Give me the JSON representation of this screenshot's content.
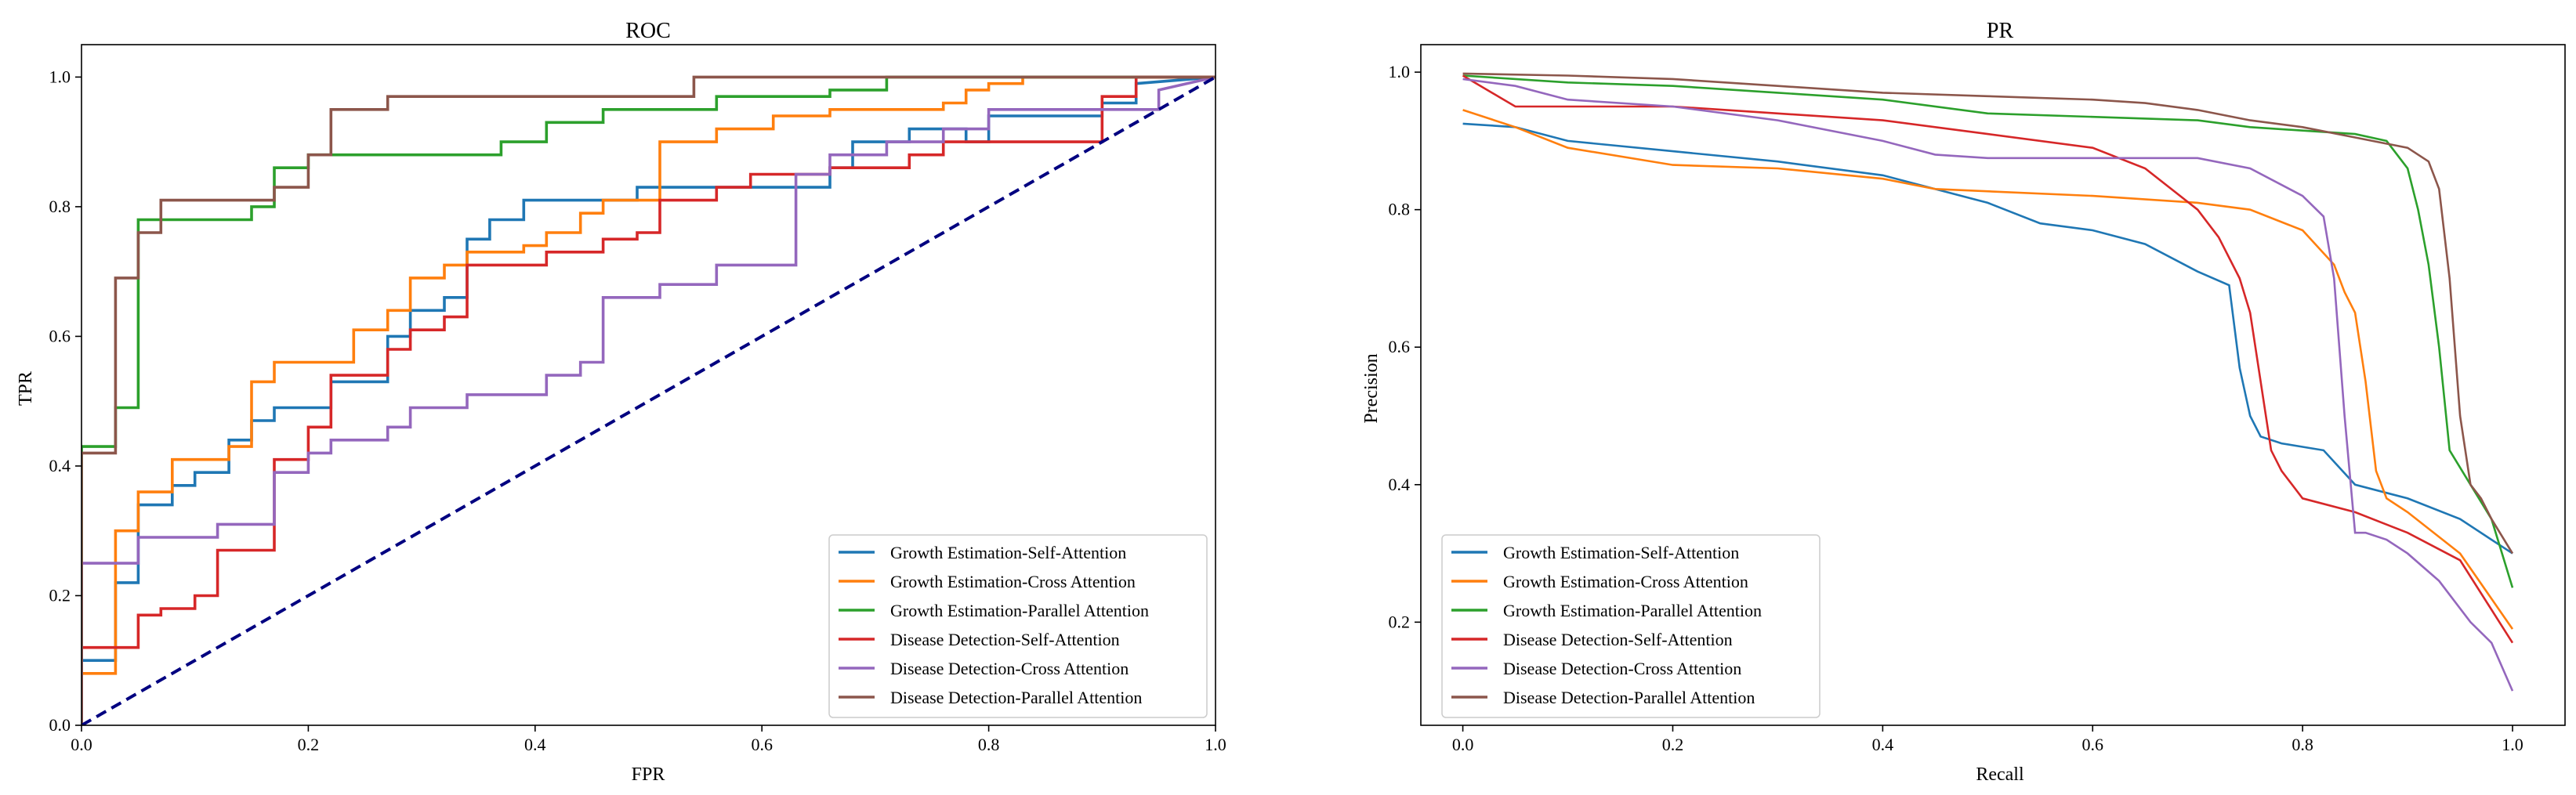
{
  "figure": {
    "charts": [
      {
        "id": "roc",
        "title": "ROC",
        "xlabel": "FPR",
        "ylabel": "TPR"
      },
      {
        "id": "pr",
        "title": "PR",
        "xlabel": "Recall",
        "ylabel": "Precision"
      }
    ]
  },
  "chart_data": [
    {
      "type": "line",
      "title": "ROC",
      "xlabel": "FPR",
      "ylabel": "TPR",
      "xlim": [
        0,
        1
      ],
      "ylim": [
        0,
        1.05
      ],
      "xticks": [
        0.0,
        0.2,
        0.4,
        0.6,
        0.8,
        1.0
      ],
      "yticks": [
        0.0,
        0.2,
        0.4,
        0.6,
        0.8,
        1.0
      ],
      "tick_labels_x": [
        "0.0",
        "0.2",
        "0.4",
        "0.6",
        "0.8",
        "1.0"
      ],
      "tick_labels_y": [
        "0.0",
        "0.2",
        "0.4",
        "0.6",
        "0.8",
        "1.0"
      ],
      "grid": false,
      "legend_position": "lower-right",
      "step": true,
      "reference_line": {
        "x": [
          0,
          1
        ],
        "y": [
          0,
          1
        ],
        "color": "#000080",
        "style": "dashed"
      },
      "series": [
        {
          "name": "Growth Estimation-Self-Attention",
          "color": "#1f77b4",
          "x": [
            0,
            0,
            0.03,
            0.03,
            0.05,
            0.05,
            0.08,
            0.08,
            0.1,
            0.1,
            0.13,
            0.13,
            0.15,
            0.15,
            0.17,
            0.17,
            0.22,
            0.22,
            0.27,
            0.27,
            0.29,
            0.29,
            0.32,
            0.32,
            0.34,
            0.34,
            0.36,
            0.36,
            0.39,
            0.39,
            0.49,
            0.49,
            0.66,
            0.66,
            0.68,
            0.68,
            0.73,
            0.73,
            0.78,
            0.78,
            0.8,
            0.8,
            0.9,
            0.9,
            0.93,
            0.93,
            1.0
          ],
          "y": [
            0,
            0.1,
            0.1,
            0.22,
            0.22,
            0.34,
            0.34,
            0.37,
            0.37,
            0.39,
            0.39,
            0.44,
            0.44,
            0.47,
            0.47,
            0.49,
            0.49,
            0.53,
            0.53,
            0.6,
            0.6,
            0.64,
            0.64,
            0.66,
            0.66,
            0.75,
            0.75,
            0.78,
            0.78,
            0.81,
            0.81,
            0.83,
            0.83,
            0.86,
            0.86,
            0.9,
            0.9,
            0.92,
            0.92,
            0.9,
            0.9,
            0.94,
            0.94,
            0.96,
            0.96,
            0.99,
            1.0
          ]
        },
        {
          "name": "Growth Estimation-Cross Attention",
          "color": "#ff7f0e",
          "x": [
            0,
            0,
            0.03,
            0.03,
            0.05,
            0.05,
            0.08,
            0.08,
            0.13,
            0.13,
            0.15,
            0.15,
            0.17,
            0.17,
            0.24,
            0.24,
            0.27,
            0.27,
            0.29,
            0.29,
            0.32,
            0.32,
            0.34,
            0.34,
            0.39,
            0.39,
            0.41,
            0.41,
            0.44,
            0.44,
            0.46,
            0.46,
            0.51,
            0.51,
            0.56,
            0.56,
            0.61,
            0.61,
            0.66,
            0.66,
            0.76,
            0.76,
            0.78,
            0.78,
            0.8,
            0.8,
            0.83,
            0.83,
            0.88,
            0.88,
            0.95,
            0.95,
            1.0
          ],
          "y": [
            0,
            0.08,
            0.08,
            0.3,
            0.3,
            0.36,
            0.36,
            0.41,
            0.41,
            0.43,
            0.43,
            0.53,
            0.53,
            0.56,
            0.56,
            0.61,
            0.61,
            0.64,
            0.64,
            0.69,
            0.69,
            0.71,
            0.71,
            0.73,
            0.73,
            0.74,
            0.74,
            0.76,
            0.76,
            0.79,
            0.79,
            0.81,
            0.81,
            0.9,
            0.9,
            0.92,
            0.92,
            0.94,
            0.94,
            0.95,
            0.95,
            0.96,
            0.96,
            0.98,
            0.98,
            0.99,
            0.99,
            1.0,
            1.0,
            1.0,
            1.0,
            1.0,
            1.0
          ]
        },
        {
          "name": "Growth Estimation-Parallel Attention",
          "color": "#2ca02c",
          "x": [
            0,
            0,
            0.03,
            0.03,
            0.05,
            0.05,
            0.15,
            0.15,
            0.17,
            0.17,
            0.2,
            0.2,
            0.37,
            0.37,
            0.41,
            0.41,
            0.46,
            0.46,
            0.56,
            0.56,
            0.66,
            0.66,
            0.71,
            0.71,
            0.76,
            0.76,
            1.0
          ],
          "y": [
            0,
            0.43,
            0.43,
            0.49,
            0.49,
            0.78,
            0.78,
            0.8,
            0.8,
            0.86,
            0.86,
            0.88,
            0.88,
            0.9,
            0.9,
            0.93,
            0.93,
            0.95,
            0.95,
            0.97,
            0.97,
            0.98,
            0.98,
            1.0,
            1.0,
            1.0,
            1.0
          ]
        },
        {
          "name": "Disease Detection-Self-Attention",
          "color": "#d62728",
          "x": [
            0,
            0,
            0.05,
            0.05,
            0.07,
            0.07,
            0.1,
            0.1,
            0.12,
            0.12,
            0.17,
            0.17,
            0.2,
            0.2,
            0.22,
            0.22,
            0.27,
            0.27,
            0.29,
            0.29,
            0.32,
            0.32,
            0.34,
            0.34,
            0.41,
            0.41,
            0.44,
            0.44,
            0.46,
            0.46,
            0.49,
            0.49,
            0.51,
            0.51,
            0.56,
            0.56,
            0.59,
            0.59,
            0.66,
            0.66,
            0.68,
            0.68,
            0.73,
            0.73,
            0.76,
            0.76,
            0.9,
            0.9,
            0.93,
            0.93,
            1.0
          ],
          "y": [
            0,
            0.12,
            0.12,
            0.17,
            0.17,
            0.18,
            0.18,
            0.2,
            0.2,
            0.27,
            0.27,
            0.41,
            0.41,
            0.46,
            0.46,
            0.54,
            0.54,
            0.58,
            0.58,
            0.61,
            0.61,
            0.63,
            0.63,
            0.71,
            0.71,
            0.73,
            0.73,
            0.73,
            0.73,
            0.75,
            0.75,
            0.76,
            0.76,
            0.81,
            0.81,
            0.83,
            0.83,
            0.85,
            0.85,
            0.86,
            0.86,
            0.86,
            0.86,
            0.88,
            0.88,
            0.9,
            0.9,
            0.97,
            0.97,
            1.0,
            1.0
          ]
        },
        {
          "name": "Disease Detection-Cross Attention",
          "color": "#9467bd",
          "x": [
            0,
            0,
            0.05,
            0.05,
            0.12,
            0.12,
            0.17,
            0.17,
            0.2,
            0.2,
            0.22,
            0.22,
            0.27,
            0.27,
            0.29,
            0.29,
            0.34,
            0.34,
            0.41,
            0.41,
            0.44,
            0.44,
            0.46,
            0.46,
            0.51,
            0.51,
            0.56,
            0.56,
            0.63,
            0.63,
            0.66,
            0.66,
            0.71,
            0.71,
            0.76,
            0.76,
            0.8,
            0.8,
            0.95,
            0.95,
            1.0
          ],
          "y": [
            0,
            0.25,
            0.25,
            0.29,
            0.29,
            0.31,
            0.31,
            0.39,
            0.39,
            0.42,
            0.42,
            0.44,
            0.44,
            0.46,
            0.46,
            0.49,
            0.49,
            0.51,
            0.51,
            0.54,
            0.54,
            0.56,
            0.56,
            0.66,
            0.66,
            0.68,
            0.68,
            0.71,
            0.71,
            0.85,
            0.85,
            0.88,
            0.88,
            0.9,
            0.9,
            0.92,
            0.92,
            0.95,
            0.95,
            0.98,
            1.0
          ]
        },
        {
          "name": "Disease Detection-Parallel Attention",
          "color": "#8c564b",
          "x": [
            0,
            0,
            0.03,
            0.03,
            0.05,
            0.05,
            0.07,
            0.07,
            0.17,
            0.17,
            0.2,
            0.2,
            0.22,
            0.22,
            0.27,
            0.27,
            0.54,
            0.54,
            1.0
          ],
          "y": [
            0,
            0.42,
            0.42,
            0.69,
            0.69,
            0.76,
            0.76,
            0.81,
            0.81,
            0.83,
            0.83,
            0.88,
            0.88,
            0.95,
            0.95,
            0.97,
            0.97,
            1.0,
            1.0
          ]
        }
      ]
    },
    {
      "type": "line",
      "title": "PR",
      "xlabel": "Recall",
      "ylabel": "Precision",
      "xlim": [
        -0.04,
        1.05
      ],
      "ylim": [
        0.05,
        1.04
      ],
      "xticks": [
        0.0,
        0.2,
        0.4,
        0.6,
        0.8,
        1.0
      ],
      "yticks": [
        0.2,
        0.4,
        0.6,
        0.8,
        1.0
      ],
      "tick_labels_x": [
        "0.0",
        "0.2",
        "0.4",
        "0.6",
        "0.8",
        "1.0"
      ],
      "tick_labels_y": [
        "0.2",
        "0.4",
        "0.6",
        "0.8",
        "1.0"
      ],
      "grid": false,
      "legend_position": "lower-left",
      "step": false,
      "series": [
        {
          "name": "Growth Estimation-Self-Attention",
          "color": "#1f77b4",
          "x": [
            0.0,
            0.05,
            0.1,
            0.2,
            0.3,
            0.4,
            0.5,
            0.55,
            0.6,
            0.65,
            0.7,
            0.73,
            0.74,
            0.75,
            0.76,
            0.78,
            0.8,
            0.82,
            0.85,
            0.9,
            0.95,
            1.0
          ],
          "y": [
            0.925,
            0.92,
            0.9,
            0.885,
            0.87,
            0.85,
            0.81,
            0.78,
            0.77,
            0.75,
            0.71,
            0.69,
            0.57,
            0.5,
            0.47,
            0.46,
            0.455,
            0.45,
            0.4,
            0.38,
            0.35,
            0.3
          ]
        },
        {
          "name": "Growth Estimation-Cross Attention",
          "color": "#ff7f0e",
          "x": [
            0.0,
            0.05,
            0.1,
            0.2,
            0.3,
            0.4,
            0.45,
            0.6,
            0.7,
            0.75,
            0.8,
            0.83,
            0.84,
            0.85,
            0.86,
            0.87,
            0.88,
            0.9,
            0.95,
            1.0
          ],
          "y": [
            0.945,
            0.92,
            0.89,
            0.865,
            0.86,
            0.845,
            0.83,
            0.82,
            0.81,
            0.8,
            0.77,
            0.72,
            0.68,
            0.65,
            0.55,
            0.42,
            0.38,
            0.36,
            0.3,
            0.19
          ]
        },
        {
          "name": "Growth Estimation-Parallel Attention",
          "color": "#2ca02c",
          "x": [
            0.0,
            0.1,
            0.2,
            0.3,
            0.4,
            0.5,
            0.6,
            0.7,
            0.75,
            0.8,
            0.85,
            0.88,
            0.9,
            0.91,
            0.92,
            0.93,
            0.94,
            0.96,
            0.98,
            1.0
          ],
          "y": [
            0.995,
            0.985,
            0.98,
            0.97,
            0.96,
            0.94,
            0.935,
            0.93,
            0.92,
            0.915,
            0.91,
            0.9,
            0.86,
            0.8,
            0.72,
            0.6,
            0.45,
            0.4,
            0.35,
            0.25
          ]
        },
        {
          "name": "Disease Detection-Self-Attention",
          "color": "#d62728",
          "x": [
            0.0,
            0.05,
            0.1,
            0.2,
            0.3,
            0.4,
            0.5,
            0.6,
            0.65,
            0.7,
            0.72,
            0.74,
            0.75,
            0.76,
            0.77,
            0.78,
            0.8,
            0.85,
            0.9,
            0.95,
            1.0
          ],
          "y": [
            0.995,
            0.95,
            0.95,
            0.95,
            0.94,
            0.93,
            0.91,
            0.89,
            0.86,
            0.8,
            0.76,
            0.7,
            0.65,
            0.55,
            0.45,
            0.42,
            0.38,
            0.36,
            0.33,
            0.29,
            0.17
          ]
        },
        {
          "name": "Disease Detection-Cross Attention",
          "color": "#9467bd",
          "x": [
            0.0,
            0.05,
            0.1,
            0.2,
            0.3,
            0.4,
            0.45,
            0.5,
            0.6,
            0.7,
            0.75,
            0.8,
            0.82,
            0.83,
            0.84,
            0.85,
            0.86,
            0.88,
            0.9,
            0.93,
            0.96,
            0.98,
            1.0
          ],
          "y": [
            0.99,
            0.98,
            0.96,
            0.95,
            0.93,
            0.9,
            0.88,
            0.875,
            0.875,
            0.875,
            0.86,
            0.82,
            0.79,
            0.7,
            0.5,
            0.33,
            0.33,
            0.32,
            0.3,
            0.26,
            0.2,
            0.17,
            0.1
          ]
        },
        {
          "name": "Disease Detection-Parallel Attention",
          "color": "#8c564b",
          "x": [
            0.0,
            0.1,
            0.2,
            0.3,
            0.4,
            0.5,
            0.6,
            0.65,
            0.7,
            0.75,
            0.8,
            0.85,
            0.9,
            0.92,
            0.93,
            0.94,
            0.95,
            0.96,
            0.97,
            0.98,
            1.0
          ],
          "y": [
            0.998,
            0.995,
            0.99,
            0.98,
            0.97,
            0.965,
            0.96,
            0.955,
            0.945,
            0.93,
            0.92,
            0.905,
            0.89,
            0.87,
            0.83,
            0.7,
            0.5,
            0.4,
            0.38,
            0.35,
            0.3
          ]
        }
      ]
    }
  ]
}
